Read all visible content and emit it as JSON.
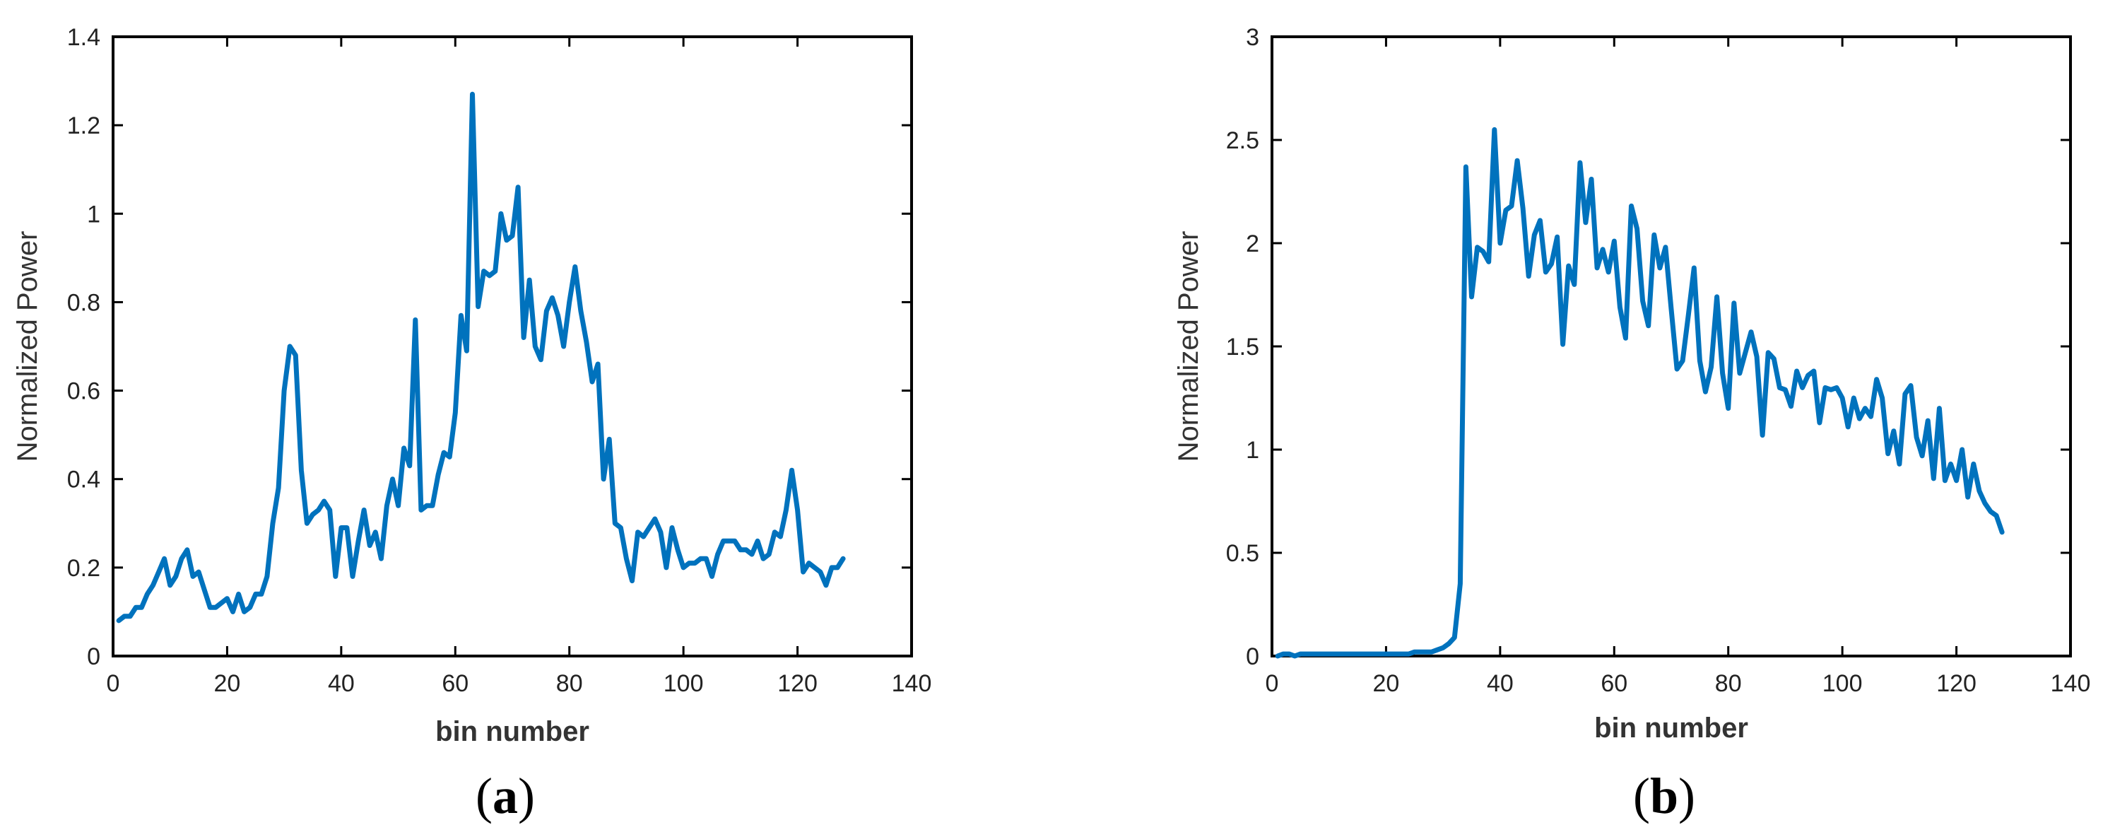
{
  "colors": {
    "line": "#0072BD",
    "axis": "#000000",
    "background": "#ffffff"
  },
  "panels": [
    {
      "label": "(a)",
      "letter": "a"
    },
    {
      "label": "(b)",
      "letter": "b"
    }
  ],
  "chart_data": [
    {
      "type": "line",
      "panel": "(a)",
      "xlabel": "bin number",
      "ylabel": "Normalized Power",
      "xlim": [
        0,
        140
      ],
      "ylim": [
        0,
        1.4
      ],
      "xticks": [
        0,
        20,
        40,
        60,
        80,
        100,
        120,
        140
      ],
      "yticks": [
        0,
        0.2,
        0.4,
        0.6,
        0.8,
        1,
        1.2,
        1.4
      ],
      "ytick_labels": [
        "0",
        "0.2",
        "0.4",
        "0.6",
        "0.8",
        "1",
        "1.2",
        "1.4"
      ],
      "grid": false,
      "series": [
        {
          "x": [
            1,
            2,
            3,
            4,
            5,
            6,
            7,
            8,
            9,
            10,
            11,
            12,
            13,
            14,
            15,
            16,
            17,
            18,
            19,
            20,
            21,
            22,
            23,
            24,
            25,
            26,
            27,
            28,
            29,
            30,
            31,
            32,
            33,
            34,
            35,
            36,
            37,
            38,
            39,
            40,
            41,
            42,
            43,
            44,
            45,
            46,
            47,
            48,
            49,
            50,
            51,
            52,
            53,
            54,
            55,
            56,
            57,
            58,
            59,
            60,
            61,
            62,
            63,
            64,
            65,
            66,
            67,
            68,
            69,
            70,
            71,
            72,
            73,
            74,
            75,
            76,
            77,
            78,
            79,
            80,
            81,
            82,
            83,
            84,
            85,
            86,
            87,
            88,
            89,
            90,
            91,
            92,
            93,
            94,
            95,
            96,
            97,
            98,
            99,
            100,
            101,
            102,
            103,
            104,
            105,
            106,
            107,
            108,
            109,
            110,
            111,
            112,
            113,
            114,
            115,
            116,
            117,
            118,
            119,
            120,
            121,
            122,
            123,
            124,
            125,
            126,
            127,
            128
          ],
          "y": [
            0.08,
            0.09,
            0.09,
            0.11,
            0.11,
            0.14,
            0.16,
            0.19,
            0.22,
            0.16,
            0.18,
            0.22,
            0.24,
            0.18,
            0.19,
            0.15,
            0.11,
            0.11,
            0.12,
            0.13,
            0.1,
            0.14,
            0.1,
            0.11,
            0.14,
            0.14,
            0.18,
            0.3,
            0.38,
            0.6,
            0.7,
            0.68,
            0.42,
            0.3,
            0.32,
            0.33,
            0.35,
            0.33,
            0.18,
            0.29,
            0.29,
            0.18,
            0.26,
            0.33,
            0.25,
            0.28,
            0.22,
            0.34,
            0.4,
            0.34,
            0.47,
            0.43,
            0.76,
            0.33,
            0.34,
            0.34,
            0.41,
            0.46,
            0.45,
            0.55,
            0.77,
            0.69,
            1.27,
            0.79,
            0.87,
            0.86,
            0.87,
            1.0,
            0.94,
            0.95,
            1.06,
            0.72,
            0.85,
            0.7,
            0.67,
            0.78,
            0.81,
            0.77,
            0.7,
            0.8,
            0.88,
            0.78,
            0.71,
            0.62,
            0.66,
            0.4,
            0.49,
            0.3,
            0.29,
            0.22,
            0.17,
            0.28,
            0.27,
            0.29,
            0.31,
            0.28,
            0.2,
            0.29,
            0.24,
            0.2,
            0.21,
            0.21,
            0.22,
            0.22,
            0.18,
            0.23,
            0.26,
            0.26,
            0.26,
            0.24,
            0.24,
            0.23,
            0.26,
            0.22,
            0.23,
            0.28,
            0.27,
            0.33,
            0.42,
            0.33,
            0.19,
            0.21,
            0.2,
            0.19,
            0.16,
            0.2,
            0.2,
            0.22
          ]
        }
      ]
    },
    {
      "type": "line",
      "panel": "(b)",
      "xlabel": "bin number",
      "ylabel": "Normalized Power",
      "xlim": [
        0,
        140
      ],
      "ylim": [
        0,
        3
      ],
      "xticks": [
        0,
        20,
        40,
        60,
        80,
        100,
        120,
        140
      ],
      "yticks": [
        0,
        0.5,
        1,
        1.5,
        2,
        2.5,
        3
      ],
      "ytick_labels": [
        "0",
        "0.5",
        "1",
        "1.5",
        "2",
        "2.5",
        "3"
      ],
      "grid": false,
      "series": [
        {
          "x": [
            1,
            2,
            3,
            4,
            5,
            6,
            7,
            8,
            9,
            10,
            11,
            12,
            13,
            14,
            15,
            16,
            17,
            18,
            19,
            20,
            21,
            22,
            23,
            24,
            25,
            26,
            27,
            28,
            29,
            30,
            31,
            32,
            33,
            34,
            35,
            36,
            37,
            38,
            39,
            40,
            41,
            42,
            43,
            44,
            45,
            46,
            47,
            48,
            49,
            50,
            51,
            52,
            53,
            54,
            55,
            56,
            57,
            58,
            59,
            60,
            61,
            62,
            63,
            64,
            65,
            66,
            67,
            68,
            69,
            70,
            71,
            72,
            73,
            74,
            75,
            76,
            77,
            78,
            79,
            80,
            81,
            82,
            83,
            84,
            85,
            86,
            87,
            88,
            89,
            90,
            91,
            92,
            93,
            94,
            95,
            96,
            97,
            98,
            99,
            100,
            101,
            102,
            103,
            104,
            105,
            106,
            107,
            108,
            109,
            110,
            111,
            112,
            113,
            114,
            115,
            116,
            117,
            118,
            119,
            120,
            121,
            122,
            123,
            124,
            125,
            126,
            127,
            128
          ],
          "y": [
            0.0,
            0.01,
            0.01,
            0.0,
            0.01,
            0.01,
            0.01,
            0.01,
            0.01,
            0.01,
            0.01,
            0.01,
            0.01,
            0.01,
            0.01,
            0.01,
            0.01,
            0.01,
            0.01,
            0.01,
            0.01,
            0.01,
            0.01,
            0.01,
            0.02,
            0.02,
            0.02,
            0.02,
            0.03,
            0.04,
            0.06,
            0.09,
            0.35,
            2.37,
            1.74,
            1.98,
            1.96,
            1.91,
            2.55,
            2.0,
            2.16,
            2.18,
            2.4,
            2.17,
            1.84,
            2.04,
            2.11,
            1.86,
            1.9,
            2.03,
            1.51,
            1.89,
            1.8,
            2.39,
            2.1,
            2.31,
            1.88,
            1.97,
            1.86,
            2.01,
            1.69,
            1.54,
            2.18,
            2.07,
            1.72,
            1.6,
            2.04,
            1.88,
            1.98,
            1.68,
            1.39,
            1.43,
            1.65,
            1.88,
            1.43,
            1.28,
            1.4,
            1.74,
            1.37,
            1.2,
            1.71,
            1.37,
            1.47,
            1.57,
            1.45,
            1.07,
            1.47,
            1.44,
            1.3,
            1.29,
            1.21,
            1.38,
            1.3,
            1.36,
            1.38,
            1.13,
            1.3,
            1.29,
            1.3,
            1.25,
            1.11,
            1.25,
            1.15,
            1.2,
            1.16,
            1.34,
            1.25,
            0.98,
            1.09,
            0.93,
            1.27,
            1.31,
            1.06,
            0.97,
            1.14,
            0.86,
            1.2,
            0.85,
            0.93,
            0.85,
            1.0,
            0.77,
            0.93,
            0.8,
            0.74,
            0.7,
            0.68,
            0.6
          ]
        }
      ]
    }
  ]
}
